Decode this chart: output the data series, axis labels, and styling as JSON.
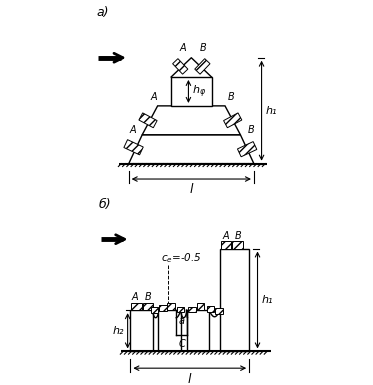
{
  "bg_color": "#ffffff",
  "line_color": "#000000",
  "label_a": "а)",
  "label_b": "б)",
  "label_l": "l",
  "label_h1": "h₁",
  "label_h2": "h₂",
  "label_hphi": "hφ",
  "label_ce": "cₑ=-0.5",
  "label_a_small": "a",
  "label_C": "C",
  "label_A": "A",
  "label_B": "B"
}
